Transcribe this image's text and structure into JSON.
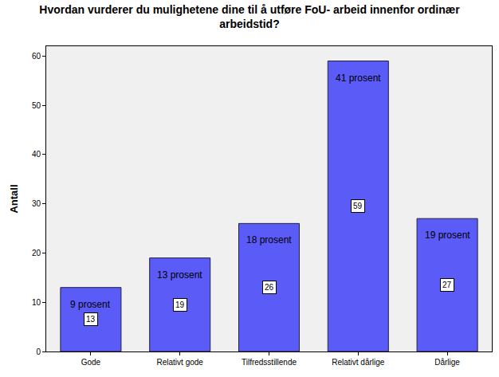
{
  "chart_data": {
    "type": "bar",
    "title": "Hvordan vurderer du mulighetene dine til å utføre FoU- arbeid innenfor ordinær\narbeidstid?",
    "y_label": "Antall",
    "categories": [
      "Gode",
      "Relativt gode",
      "Tilfredsstillende",
      "Relativt dårlige",
      "Dårlige"
    ],
    "values": [
      13,
      19,
      26,
      59,
      27
    ],
    "annotations": [
      "9 prosent",
      "13 prosent",
      "18 prosent",
      "41 prosent",
      "19 prosent"
    ],
    "color": "#5b5bf7",
    "ylim": [
      0,
      62
    ],
    "yticks": [
      0,
      10,
      20,
      30,
      40,
      50,
      60
    ],
    "grid": false,
    "data_labels": true
  }
}
